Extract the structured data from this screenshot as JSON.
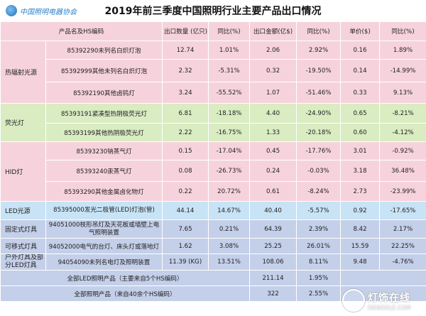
{
  "logo_text": "中国照明电器协会",
  "title": "2019年前三季度中国照明行业主要产品出口情况",
  "headers": [
    "产品名及HS编码",
    "出口数量 (亿只)",
    "同比(%)",
    "出口金额(亿$)",
    "同比(%)",
    "单价($)",
    "同比(%)"
  ],
  "groups": [
    {
      "label": "热辐射光源",
      "color": "#f6d3dc",
      "rows": [
        {
          "product": "85392290未列名白炽灯泡",
          "qty": "12.74",
          "qty_yoy": "1.01%",
          "amt": "2.06",
          "amt_yoy": "2.92%",
          "price": "0.16",
          "price_yoy": "1.89%"
        },
        {
          "product": "85392999其他未列名白炽灯泡",
          "qty": "2.32",
          "qty_yoy": "-5.31%",
          "amt": "0.32",
          "amt_yoy": "-19.50%",
          "price": "0.14",
          "price_yoy": "-14.99%"
        },
        {
          "product": "85392190其他卤钨灯",
          "qty": "3.24",
          "qty_yoy": "-55.52%",
          "amt": "1.07",
          "amt_yoy": "-51.46%",
          "price": "0.33",
          "price_yoy": "9.13%"
        }
      ]
    },
    {
      "label": "荧光灯",
      "color": "#d9ecc2",
      "rows": [
        {
          "product": "85393191紧凑型热阴极荧光灯",
          "qty": "6.81",
          "qty_yoy": "-18.18%",
          "amt": "4.40",
          "amt_yoy": "-24.90%",
          "price": "0.65",
          "price_yoy": "-8.21%"
        },
        {
          "product": "85393199其他热阴极荧光灯",
          "qty": "2.22",
          "qty_yoy": "-16.75%",
          "amt": "1.33",
          "amt_yoy": "-20.18%",
          "price": "0.60",
          "price_yoy": "-4.12%"
        }
      ]
    },
    {
      "label": "HID灯",
      "color": "#f6d3dc",
      "rows": [
        {
          "product": "85393230钠蒸气灯",
          "qty": "0.15",
          "qty_yoy": "-17.04%",
          "amt": "0.45",
          "amt_yoy": "-17.76%",
          "price": "3.01",
          "price_yoy": "-0.92%"
        },
        {
          "product": "85393240汞蒸气灯",
          "qty": "0.08",
          "qty_yoy": "-26.73%",
          "amt": "0.24",
          "amt_yoy": "-0.03%",
          "price": "3.18",
          "price_yoy": "36.48%"
        },
        {
          "product": "85393290其他金属卤化物灯",
          "qty": "0.22",
          "qty_yoy": "20.72%",
          "amt": "0.61",
          "amt_yoy": "-8.24%",
          "price": "2.73",
          "price_yoy": "-23.99%"
        }
      ]
    },
    {
      "label": "LED光源",
      "color": "#c7e3f5",
      "rows": [
        {
          "product": "85395000发光二极管(LED)灯泡(管)",
          "qty": "44.14",
          "qty_yoy": "14.67%",
          "amt": "40.40",
          "amt_yoy": "-5.57%",
          "price": "0.92",
          "price_yoy": "-17.65%"
        }
      ]
    },
    {
      "label": "固定式灯具",
      "color": "#c4cfe9",
      "rows": [
        {
          "product": "94051000枝形吊灯及天花板或墙壁上电气照明装置",
          "qty": "7.65",
          "qty_yoy": "0.21%",
          "amt": "64.39",
          "amt_yoy": "2.39%",
          "price": "8.42",
          "price_yoy": "2.17%"
        }
      ]
    },
    {
      "label": "可移式灯具",
      "color": "#c4cfe9",
      "rows": [
        {
          "product": "94052000电气的台灯、床头灯或落地灯",
          "qty": "1.62",
          "qty_yoy": "3.08%",
          "amt": "25.25",
          "amt_yoy": "26.01%",
          "price": "15.59",
          "price_yoy": "22.25%"
        }
      ]
    },
    {
      "label": "户外灯具及部分LED灯具",
      "color": "#c4cfe9",
      "rows": [
        {
          "product": "94054090未列名电灯及照明装置",
          "qty": "11.39 (KG)",
          "qty_yoy": "13.51%",
          "amt": "108.06",
          "amt_yoy": "8.11%",
          "price": "9.48",
          "price_yoy": "-4.76%"
        }
      ]
    }
  ],
  "footer_rows": [
    {
      "label": "全部LED照明产品（主要来自5个HS编码）",
      "amt": "211.14",
      "amt_yoy": "1.95%"
    },
    {
      "label": "全部照明产品（来自40余个HS编码）",
      "amt": "322",
      "amt_yoy": "2.55%"
    }
  ],
  "watermark": {
    "cn": "灯饰在线",
    "en": "DENGGLE.COM"
  }
}
